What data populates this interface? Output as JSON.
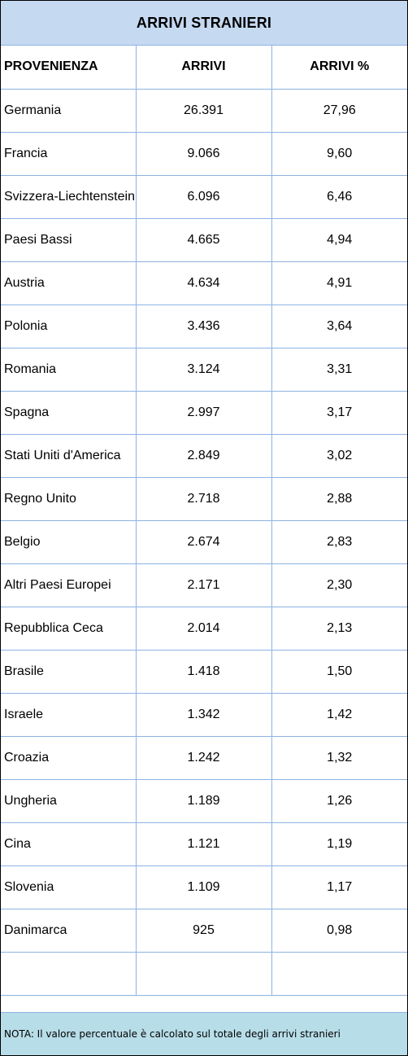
{
  "title": "ARRIVI STRANIERI",
  "columns": [
    "PROVENIENZA",
    "ARRIVI",
    "ARRIVI %"
  ],
  "rows": [
    {
      "provenienza": "Germania",
      "arrivi": "26.391",
      "percent": "27,96"
    },
    {
      "provenienza": "Francia",
      "arrivi": "9.066",
      "percent": "9,60"
    },
    {
      "provenienza": "Svizzera-Liechtenstein",
      "arrivi": "6.096",
      "percent": "6,46"
    },
    {
      "provenienza": "Paesi Bassi",
      "arrivi": "4.665",
      "percent": "4,94"
    },
    {
      "provenienza": "Austria",
      "arrivi": "4.634",
      "percent": "4,91"
    },
    {
      "provenienza": "Polonia",
      "arrivi": "3.436",
      "percent": "3,64"
    },
    {
      "provenienza": "Romania",
      "arrivi": "3.124",
      "percent": "3,31"
    },
    {
      "provenienza": "Spagna",
      "arrivi": "2.997",
      "percent": "3,17"
    },
    {
      "provenienza": "Stati Uniti d'America",
      "arrivi": "2.849",
      "percent": "3,02"
    },
    {
      "provenienza": "Regno Unito",
      "arrivi": "2.718",
      "percent": "2,88"
    },
    {
      "provenienza": "Belgio",
      "arrivi": "2.674",
      "percent": "2,83"
    },
    {
      "provenienza": "Altri Paesi Europei",
      "arrivi": "2.171",
      "percent": "2,30"
    },
    {
      "provenienza": "Repubblica Ceca",
      "arrivi": "2.014",
      "percent": "2,13"
    },
    {
      "provenienza": "Brasile",
      "arrivi": "1.418",
      "percent": "1,50"
    },
    {
      "provenienza": "Israele",
      "arrivi": "1.342",
      "percent": "1,42"
    },
    {
      "provenienza": "Croazia",
      "arrivi": "1.242",
      "percent": "1,32"
    },
    {
      "provenienza": "Ungheria",
      "arrivi": "1.189",
      "percent": "1,26"
    },
    {
      "provenienza": "Cina",
      "arrivi": "1.121",
      "percent": "1,19"
    },
    {
      "provenienza": "Slovenia",
      "arrivi": "1.109",
      "percent": "1,17"
    },
    {
      "provenienza": "Danimarca",
      "arrivi": "925",
      "percent": "0,98"
    },
    {
      "provenienza": "",
      "arrivi": "",
      "percent": ""
    }
  ],
  "note": "NOTA: Il valore percentuale è calcolato sul totale degli arrivi stranieri"
}
